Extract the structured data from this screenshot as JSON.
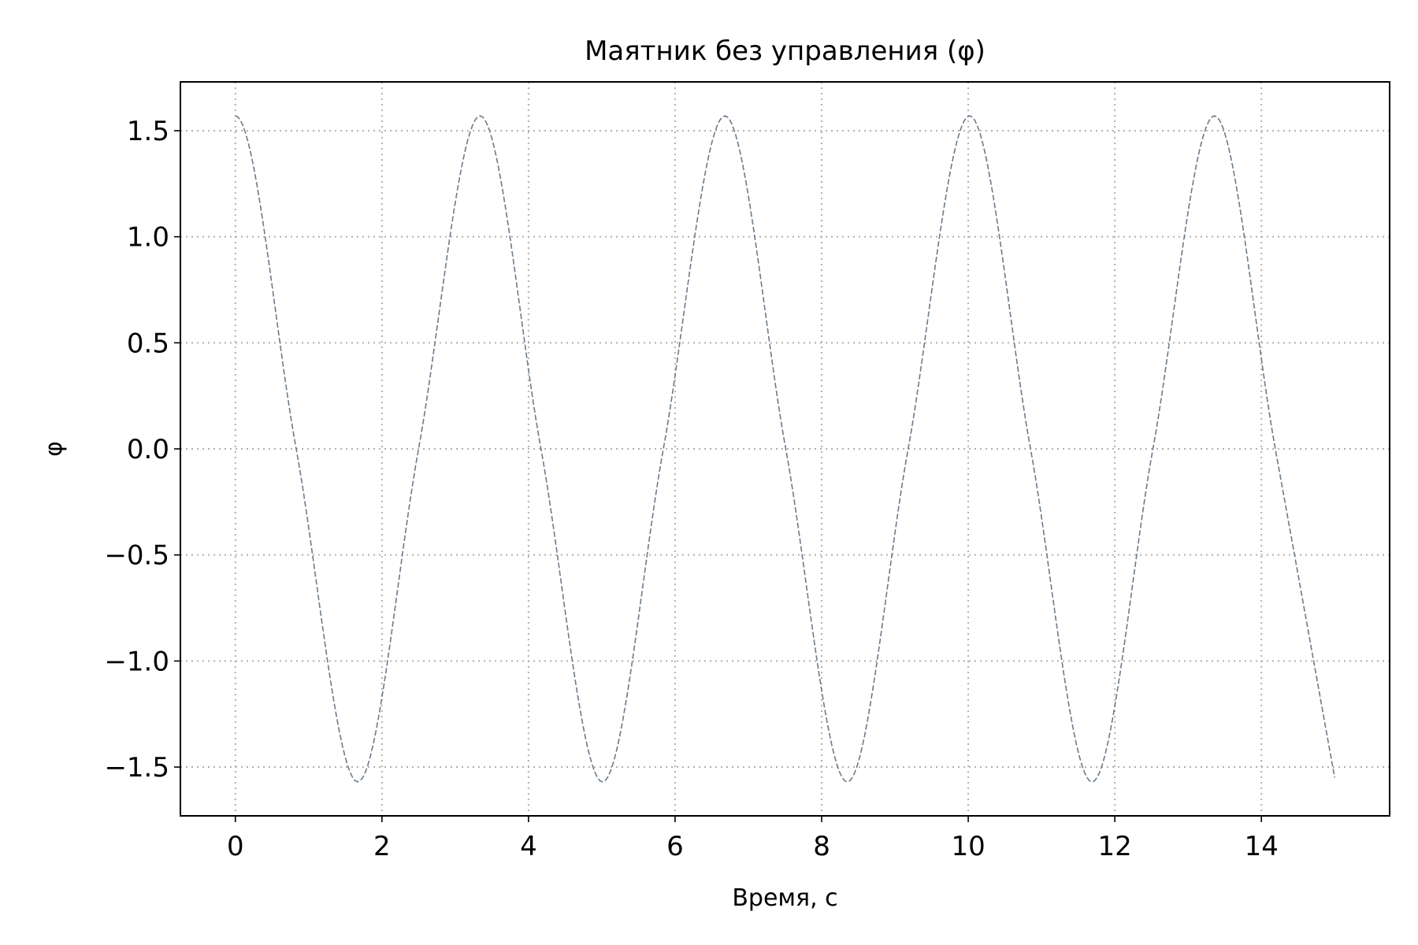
{
  "chart_data": {
    "type": "line",
    "title": "Маятник без управления (φ)",
    "xlabel": "Время, с",
    "ylabel": "φ",
    "xlim": [
      -0.75,
      15.75
    ],
    "ylim": [
      -1.73,
      1.73
    ],
    "x_ticks": [
      0,
      2,
      4,
      6,
      8,
      10,
      12,
      14
    ],
    "x_tick_labels": [
      "0",
      "2",
      "4",
      "6",
      "8",
      "10",
      "12",
      "14"
    ],
    "y_ticks": [
      1.5,
      1.0,
      0.5,
      0.0,
      -0.5,
      -1.0,
      -1.5
    ],
    "y_tick_labels": [
      "1.5",
      "1.0",
      "0.5",
      "0.0",
      "−0.5",
      "−1.0",
      "−1.5"
    ],
    "grid": true,
    "legend": "none",
    "series": [
      {
        "color": "#6b7b8c",
        "line_style": "dashed",
        "x": [
          0,
          0.83,
          1.67,
          2.5,
          3.34,
          4.17,
          5.01,
          5.84,
          6.68,
          7.51,
          8.35,
          9.18,
          10.02,
          10.85,
          11.69,
          12.52,
          13.36,
          14.19,
          15.0
        ],
        "y": [
          1.57,
          0,
          -1.57,
          0,
          1.57,
          0,
          -1.57,
          0,
          1.57,
          0,
          -1.57,
          0,
          1.57,
          0,
          -1.57,
          0,
          1.57,
          0,
          -1.55
        ]
      }
    ]
  }
}
